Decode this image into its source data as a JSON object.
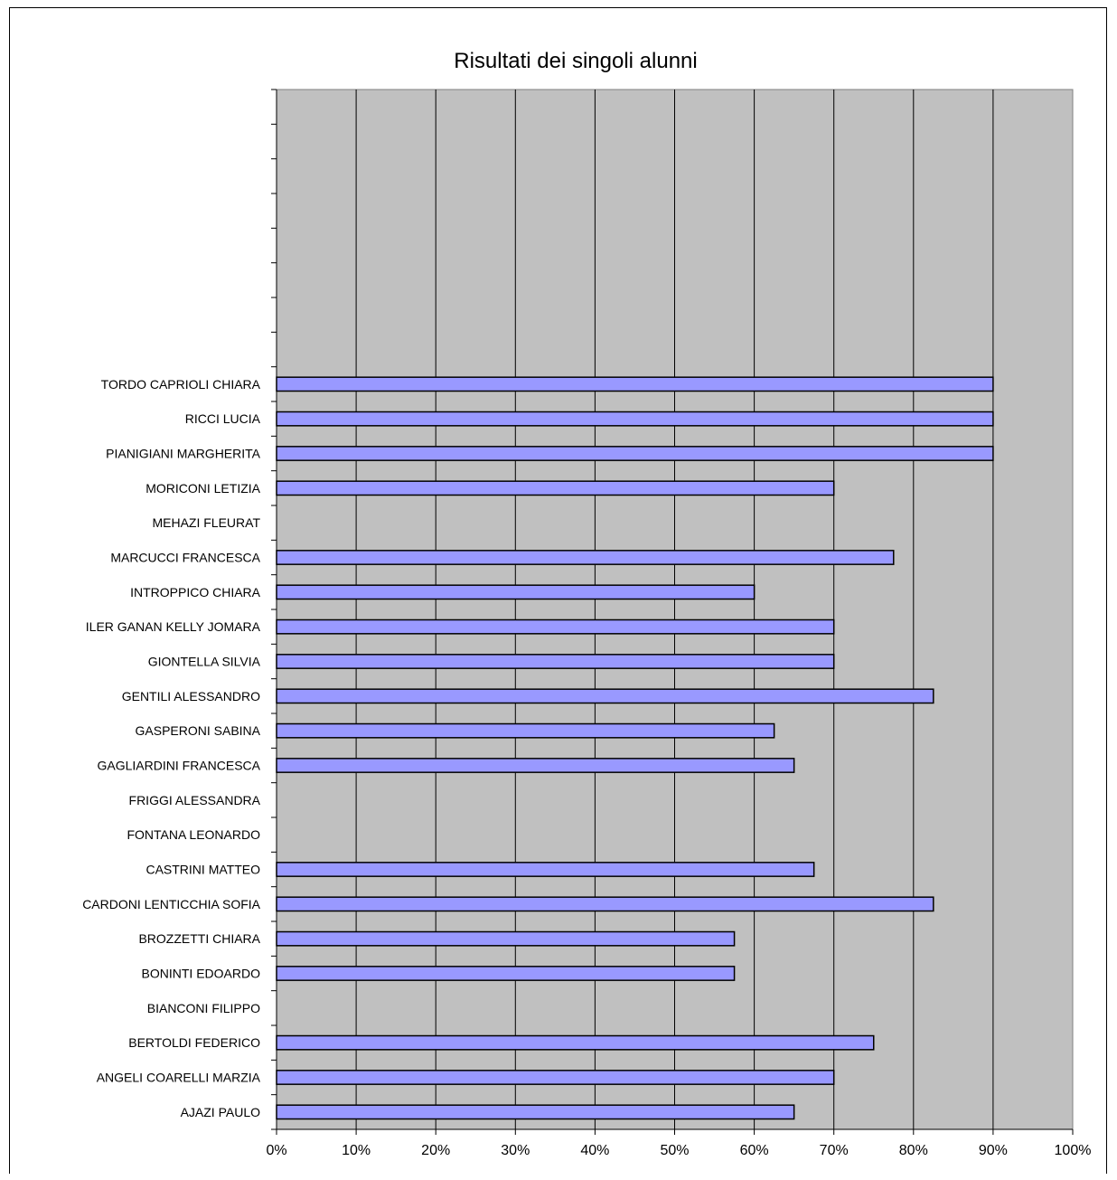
{
  "chart_data": {
    "type": "bar",
    "orientation": "horizontal",
    "title": "Risultati dei singoli alunni",
    "xlabel": "",
    "ylabel": "",
    "xlim": [
      0,
      1
    ],
    "x_ticks": [
      "0%",
      "10%",
      "20%",
      "30%",
      "40%",
      "50%",
      "60%",
      "70%",
      "80%",
      "90%",
      "100%"
    ],
    "grid": "vertical",
    "plot_background": "#c0c0c0",
    "bar_color": "#9999ff",
    "empty_slots_top": 8,
    "categories": [
      "AJAZI PAULO",
      "ANGELI COARELLI MARZIA",
      "BERTOLDI FEDERICO",
      "BIANCONI FILIPPO",
      "BONINTI EDOARDO",
      "BROZZETTI CHIARA",
      "CARDONI LENTICCHIA SOFIA",
      "CASTRINI MATTEO",
      "FONTANA LEONARDO",
      "FRIGGI ALESSANDRA",
      "GAGLIARDINI FRANCESCA",
      "GASPERONI SABINA",
      "GENTILI ALESSANDRO",
      "GIONTELLA SILVIA",
      "ILER GANAN KELLY JOMARA",
      "INTROPPICO CHIARA",
      "MARCUCCI FRANCESCA",
      "MEHAZI FLEURAT",
      "MORICONI LETIZIA",
      "PIANIGIANI MARGHERITA",
      "RICCI LUCIA",
      "TORDO CAPRIOLI CHIARA"
    ],
    "values": [
      0.65,
      0.7,
      0.75,
      null,
      0.575,
      0.575,
      0.825,
      0.675,
      null,
      null,
      0.65,
      0.625,
      0.825,
      0.7,
      0.7,
      0.6,
      0.775,
      null,
      0.7,
      0.9,
      0.9,
      0.9
    ]
  }
}
